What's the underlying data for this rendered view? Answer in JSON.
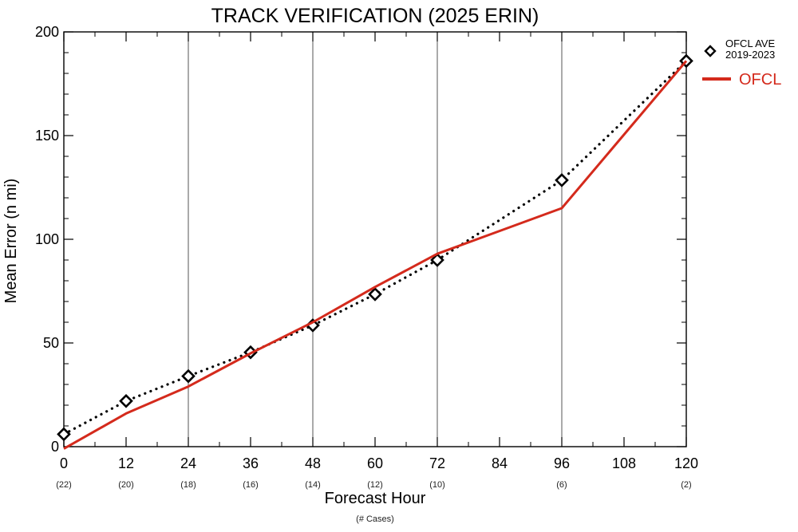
{
  "chart_data": {
    "type": "line",
    "title": "TRACK VERIFICATION (2025 ERIN)",
    "xlabel": "Forecast Hour",
    "xlabel_sub": "(# Cases)",
    "ylabel": "Mean Error (n mi)",
    "xlim": [
      0,
      120
    ],
    "ylim": [
      0,
      200
    ],
    "x_ticks": [
      0,
      12,
      24,
      36,
      48,
      60,
      72,
      84,
      96,
      108,
      120
    ],
    "x_tick_labels": [
      "0",
      "12",
      "24",
      "36",
      "48",
      "60",
      "72",
      "84",
      "96",
      "108",
      "120"
    ],
    "y_ticks": [
      0,
      50,
      100,
      150,
      200
    ],
    "y_tick_labels": [
      "0",
      "50",
      "100",
      "150",
      "200"
    ],
    "vertical_grid_at": [
      24,
      48,
      72,
      96
    ],
    "case_counts": [
      {
        "x": 0,
        "label": "(22)"
      },
      {
        "x": 12,
        "label": "(20)"
      },
      {
        "x": 24,
        "label": "(18)"
      },
      {
        "x": 36,
        "label": "(16)"
      },
      {
        "x": 48,
        "label": "(14)"
      },
      {
        "x": 60,
        "label": "(12)"
      },
      {
        "x": 72,
        "label": "(10)"
      },
      {
        "x": 96,
        "label": "(6)"
      },
      {
        "x": 120,
        "label": "(2)"
      }
    ],
    "series": [
      {
        "name": "OFCL AVE 2019-2023",
        "legend_lines": [
          "OFCL AVE",
          "2019-2023"
        ],
        "style": "dotted-diamond",
        "color": "#000000",
        "x": [
          0,
          12,
          24,
          36,
          48,
          60,
          72,
          96,
          120
        ],
        "y": [
          6,
          22,
          34,
          45.5,
          58.5,
          73.5,
          90,
          128.5,
          186
        ]
      },
      {
        "name": "OFCL",
        "style": "solid",
        "color": "#d42a1c",
        "x": [
          0,
          12,
          24,
          36,
          48,
          60,
          72,
          96,
          120
        ],
        "y": [
          -1,
          16,
          29,
          45,
          60,
          77,
          93,
          115,
          186
        ]
      }
    ],
    "grid": "partial-vertical",
    "legend_position": "top-right-outside"
  }
}
